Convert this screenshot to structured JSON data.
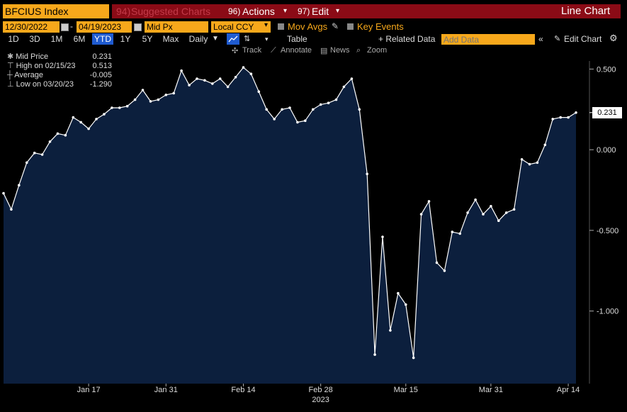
{
  "header": {
    "ticker": "BFCIUS Index",
    "suggested_charts": "Suggested Charts",
    "suggested_charts_num": "94)",
    "actions": "Actions",
    "actions_num": "96)",
    "edit": "Edit",
    "edit_num": "97)",
    "chart_title": "Line Chart"
  },
  "controls": {
    "start_date": "12/30/2022",
    "end_date": "04/19/2023",
    "field": "Mid Px",
    "currency": "Local CCY",
    "mov_avgs": "Mov Avgs",
    "key_events": "Key Events",
    "ranges": [
      "1D",
      "3D",
      "1M",
      "6M",
      "YTD",
      "1Y",
      "5Y",
      "Max"
    ],
    "active_range": "YTD",
    "frequency": "Daily",
    "table": "Table",
    "related_data": "+ Related Data",
    "add_data_placeholder": "Add Data",
    "edit_chart": "Edit Chart"
  },
  "tools": {
    "track": "Track",
    "annotate": "Annotate",
    "news": "News",
    "zoom": "Zoom"
  },
  "legend": {
    "mid_price_label": "Mid Price",
    "mid_price_value": "0.231",
    "high_label": "High on 02/15/23",
    "high_value": "0.513",
    "average_label": "Average",
    "average_value": "-0.005",
    "low_label": "Low on 03/20/23",
    "low_value": "-1.290"
  },
  "colors": {
    "accent_orange": "#f7a81b",
    "header_red": "#8b0b16",
    "area_fill": "#0c1f3d",
    "line": "#ffffff",
    "active_range": "#1f5bd0"
  },
  "chart_data": {
    "type": "area",
    "title": "",
    "xlabel": "2023",
    "ylabel": "",
    "ylim": [
      -1.45,
      0.55
    ],
    "x_tick_labels": [
      "Jan 17",
      "Jan 31",
      "Feb 14",
      "Feb 28",
      "Mar 15",
      "Mar 31",
      "Apr 14"
    ],
    "x_tick_index": [
      11,
      21,
      31,
      41,
      52,
      63,
      73
    ],
    "y_ticks": [
      0.5,
      0.0,
      -0.5,
      -1.0
    ],
    "y_tick_labels": [
      "0.500",
      "0.000",
      "-0.500",
      "-1.000"
    ],
    "last_value_label": "0.231",
    "series": [
      {
        "values": [
          -0.27,
          -0.37,
          -0.22,
          -0.08,
          -0.02,
          -0.03,
          0.05,
          0.1,
          0.09,
          0.2,
          0.17,
          0.13,
          0.19,
          0.22,
          0.26,
          0.26,
          0.27,
          0.31,
          0.37,
          0.3,
          0.31,
          0.34,
          0.35,
          0.49,
          0.4,
          0.44,
          0.43,
          0.41,
          0.44,
          0.39,
          0.45,
          0.51,
          0.47,
          0.36,
          0.25,
          0.19,
          0.25,
          0.26,
          0.17,
          0.18,
          0.25,
          0.28,
          0.29,
          0.31,
          0.39,
          0.44,
          0.25,
          -0.15,
          -1.27,
          -0.54,
          -1.12,
          -0.89,
          -0.96,
          -1.29,
          -0.4,
          -0.32,
          -0.7,
          -0.75,
          -0.51,
          -0.52,
          -0.39,
          -0.31,
          -0.4,
          -0.35,
          -0.44,
          -0.39,
          -0.37,
          -0.06,
          -0.09,
          -0.08,
          0.03,
          0.19,
          0.2,
          0.2,
          0.23
        ]
      }
    ]
  }
}
